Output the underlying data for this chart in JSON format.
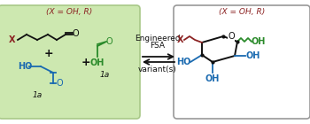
{
  "left_box_color": "#cde8b0",
  "left_box_edge": "#a8c888",
  "right_box_color": "#ffffff",
  "right_box_edge": "#999999",
  "dark_red": "#8b2222",
  "green": "#2a8a2a",
  "blue": "#1a6ab0",
  "black": "#111111",
  "label_x_oh_r": "(X = OH, R)",
  "arrow_text_line1": "Engineered",
  "arrow_text_line2": "FSA",
  "arrow_text_line3": "variant(s)",
  "fig_width": 3.5,
  "fig_height": 1.4,
  "dpi": 100
}
